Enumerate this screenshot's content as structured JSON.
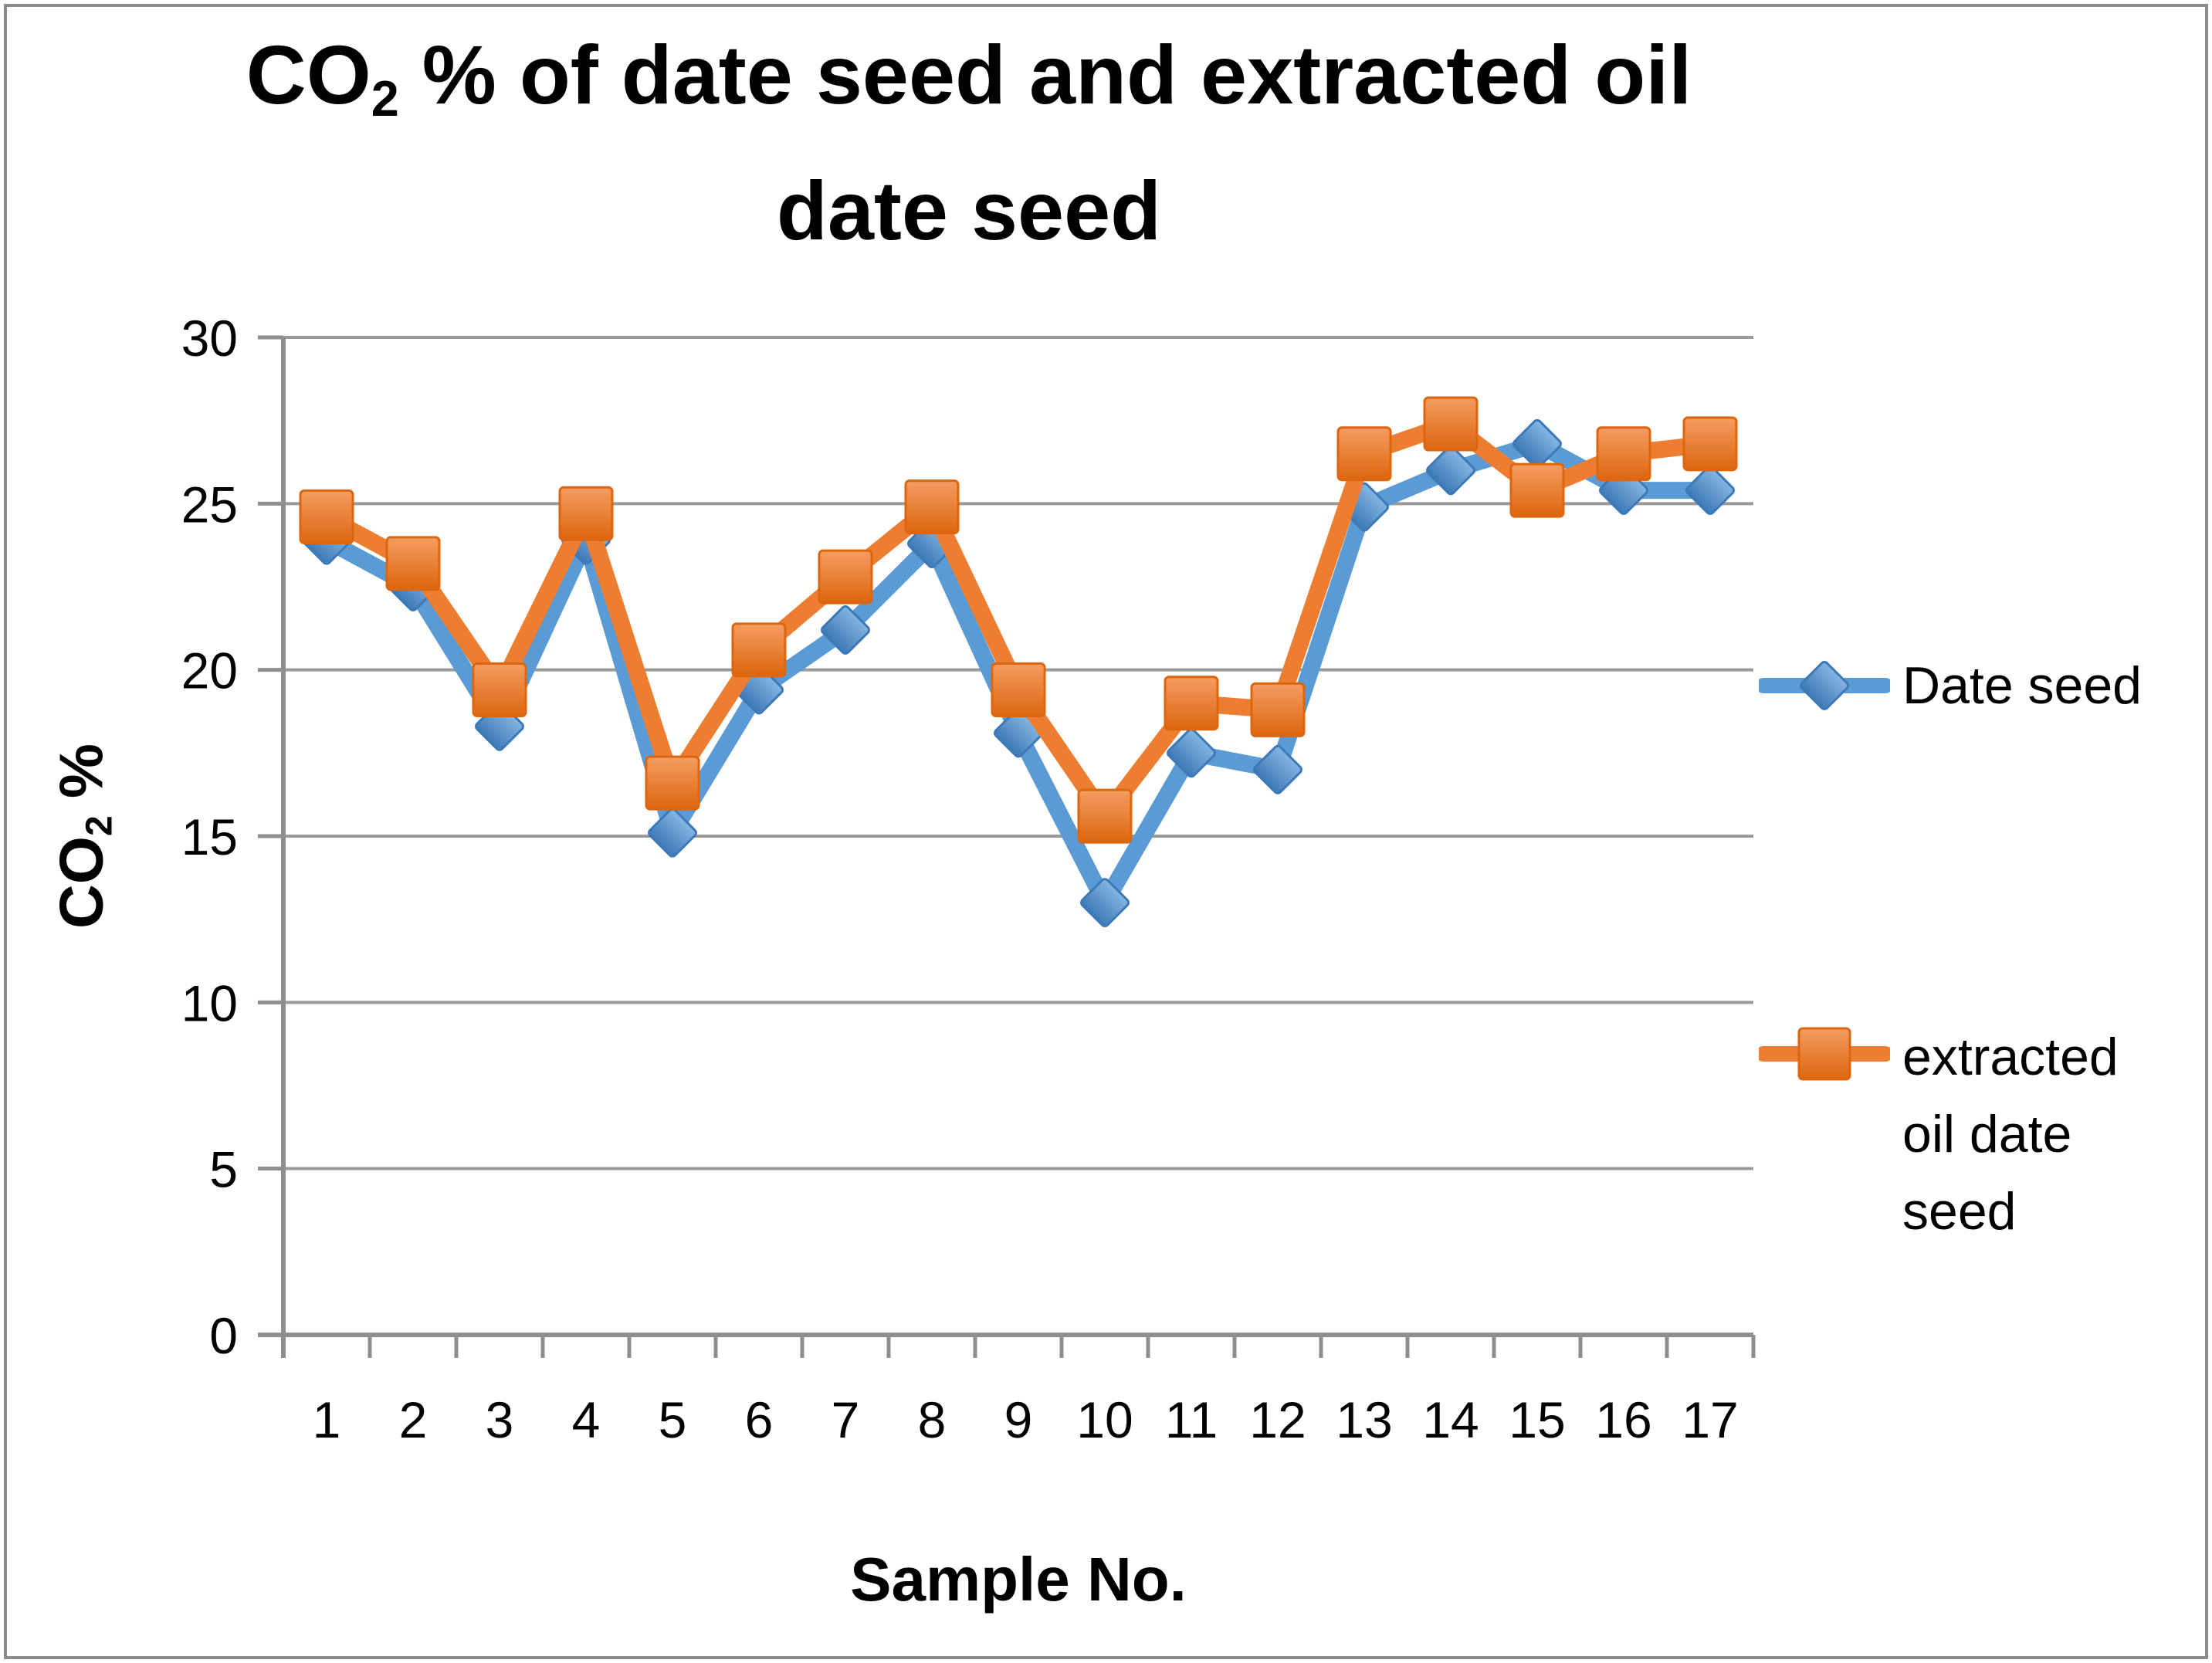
{
  "title": {
    "pre": "CO",
    "sub": "2",
    "rest": " % of date seed and extracted oil",
    "line2": "date seed"
  },
  "axes": {
    "x_title": "Sample No.",
    "y_pre": "CO",
    "y_sub": "2",
    "y_rest": " %"
  },
  "chart_data": {
    "type": "line",
    "title": "CO2 % of date seed and extracted oil date seed",
    "xlabel": "Sample No.",
    "ylabel": "CO2 %",
    "categories": [
      "1",
      "2",
      "3",
      "4",
      "5",
      "6",
      "7",
      "8",
      "9",
      "10",
      "11",
      "12",
      "13",
      "14",
      "15",
      "16",
      "17"
    ],
    "ylim": [
      0,
      30
    ],
    "yticks": [
      0,
      5,
      10,
      15,
      20,
      25,
      30
    ],
    "grid": true,
    "legend_position": "right",
    "axis_color": "#8e8e8e",
    "grid_color": "#9a9a9a",
    "series": [
      {
        "name": "Date seed",
        "marker": "diamond",
        "color": "#5B9BD5",
        "color_light": "#85B6E2",
        "color_dark": "#3D79B7",
        "values": [
          23.9,
          22.5,
          18.3,
          23.9,
          15.1,
          19.4,
          21.2,
          23.8,
          18.1,
          13.0,
          17.5,
          17.0,
          24.9,
          26.0,
          26.8,
          25.4,
          25.4
        ]
      },
      {
        "name": "extracted oil date seed",
        "marker": "square",
        "color": "#ED7D31",
        "color_light": "#F49D62",
        "color_dark": "#DC660E",
        "values": [
          24.6,
          23.2,
          19.4,
          24.7,
          16.6,
          20.6,
          22.8,
          24.9,
          19.4,
          15.6,
          19.0,
          18.8,
          26.5,
          27.4,
          25.4,
          26.5,
          26.8
        ]
      }
    ]
  }
}
